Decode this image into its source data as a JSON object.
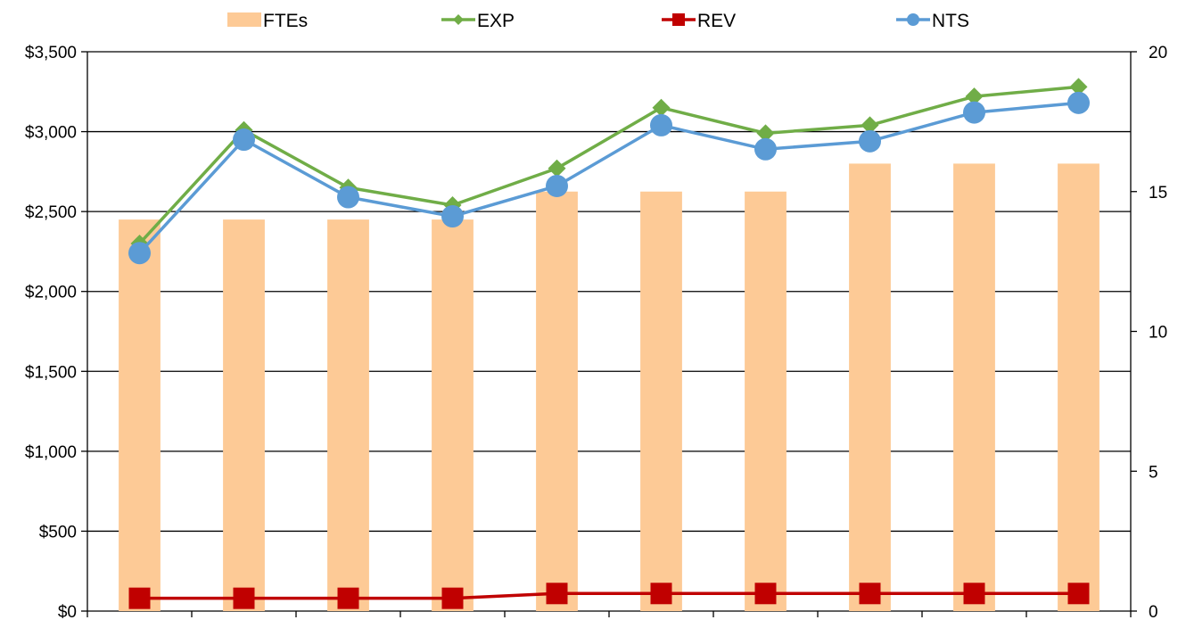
{
  "chart_data": {
    "type": "bar",
    "title": "",
    "xlabel": "",
    "ylabel": "",
    "y2label": "",
    "categories": [
      "",
      "",
      "",
      "",
      "",
      "",
      "",
      "",
      "",
      ""
    ],
    "ylim": [
      0,
      3500
    ],
    "y2lim": [
      0,
      20
    ],
    "y_ticks": [
      "$0",
      "$500",
      "$1,000",
      "$1,500",
      "$2,000",
      "$2,500",
      "$3,000",
      "$3,500"
    ],
    "y2_ticks": [
      "0",
      "5",
      "10",
      "15",
      "20"
    ],
    "grid": "horizontal",
    "legend_position": "top",
    "series": [
      {
        "name": "FTEs",
        "kind": "bar",
        "axis": "right",
        "color": "#FDCA96",
        "values": [
          14,
          14,
          14,
          14,
          15,
          15,
          15,
          16,
          16,
          16
        ]
      },
      {
        "name": "EXP",
        "kind": "line",
        "axis": "left",
        "marker": "diamond",
        "color": "#70AD47",
        "values": [
          2300,
          3010,
          2650,
          2540,
          2770,
          3150,
          2990,
          3040,
          3220,
          3280
        ]
      },
      {
        "name": "REV",
        "kind": "line",
        "axis": "left",
        "marker": "square",
        "color": "#C00000",
        "values": [
          80,
          80,
          80,
          80,
          110,
          110,
          110,
          110,
          110,
          110
        ]
      },
      {
        "name": "NTS",
        "kind": "line",
        "axis": "left",
        "marker": "circle",
        "color": "#5B9BD5",
        "values": [
          2240,
          2950,
          2590,
          2470,
          2660,
          3040,
          2890,
          2940,
          3120,
          3180
        ]
      }
    ]
  }
}
